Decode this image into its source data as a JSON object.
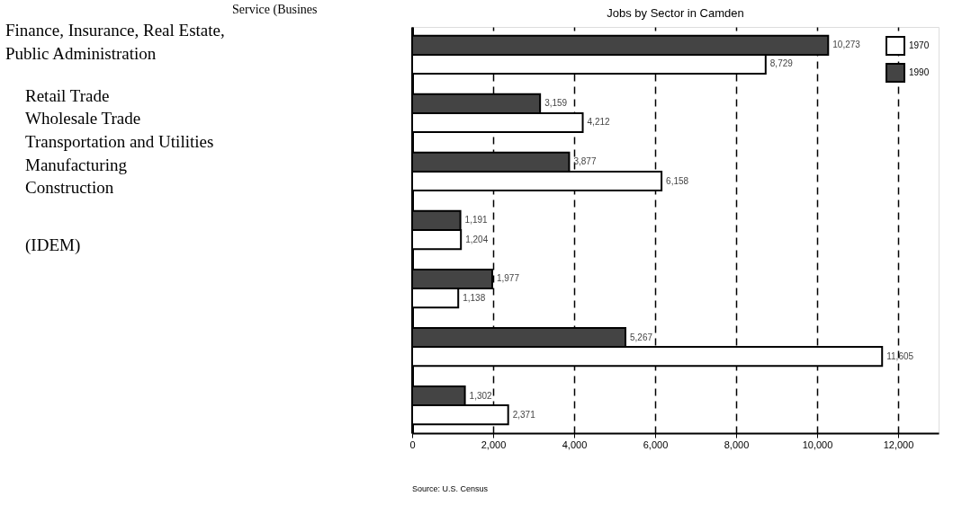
{
  "chart_data": {
    "type": "bar",
    "orientation": "horizontal",
    "title": "Jobs by Sector in Camden",
    "categories": [
      null,
      null,
      null,
      null,
      null,
      null,
      null
    ],
    "series": [
      {
        "name": "1970",
        "color": "#ffffff",
        "values": [
          8729,
          4212,
          6158,
          1204,
          1138,
          11605,
          2371
        ],
        "value_labels": [
          "8,729",
          "4,212",
          "6,158",
          "1,204",
          "1,138",
          "11,605",
          "2,371"
        ]
      },
      {
        "name": "1990",
        "color": "#444444",
        "values": [
          10273,
          3159,
          3877,
          1191,
          1977,
          5267,
          1302
        ],
        "value_labels": [
          "10,273",
          "3,159",
          "3,877",
          "1,191",
          "1,977",
          "5,267",
          "1,302"
        ]
      }
    ],
    "xlim": [
      0,
      13000
    ],
    "xticks": [
      0,
      {
        "value": 2000,
        "label": "2,000"
      },
      {
        "value": 4000,
        "label": "4,000"
      },
      {
        "value": 6000,
        "label": "6,000"
      },
      {
        "value": 8000,
        "label": "8,000"
      },
      {
        "value": 10000,
        "label": "10,000"
      },
      {
        "value": 12000,
        "label": "12,000"
      }
    ],
    "grid": "x",
    "line_style": "dashed",
    "legend": "top right",
    "tick_labels": "x",
    "annotations": [
      "Service (Busines",
      "Finance, Insurance, Real Estate,",
      "Public Administration",
      "Retail Trade",
      "Wholesale Trade",
      "Transportation and Utilities",
      "Manufacturing",
      "Construction",
      "(IDEM)",
      "Source: U.S. Census"
    ]
  }
}
